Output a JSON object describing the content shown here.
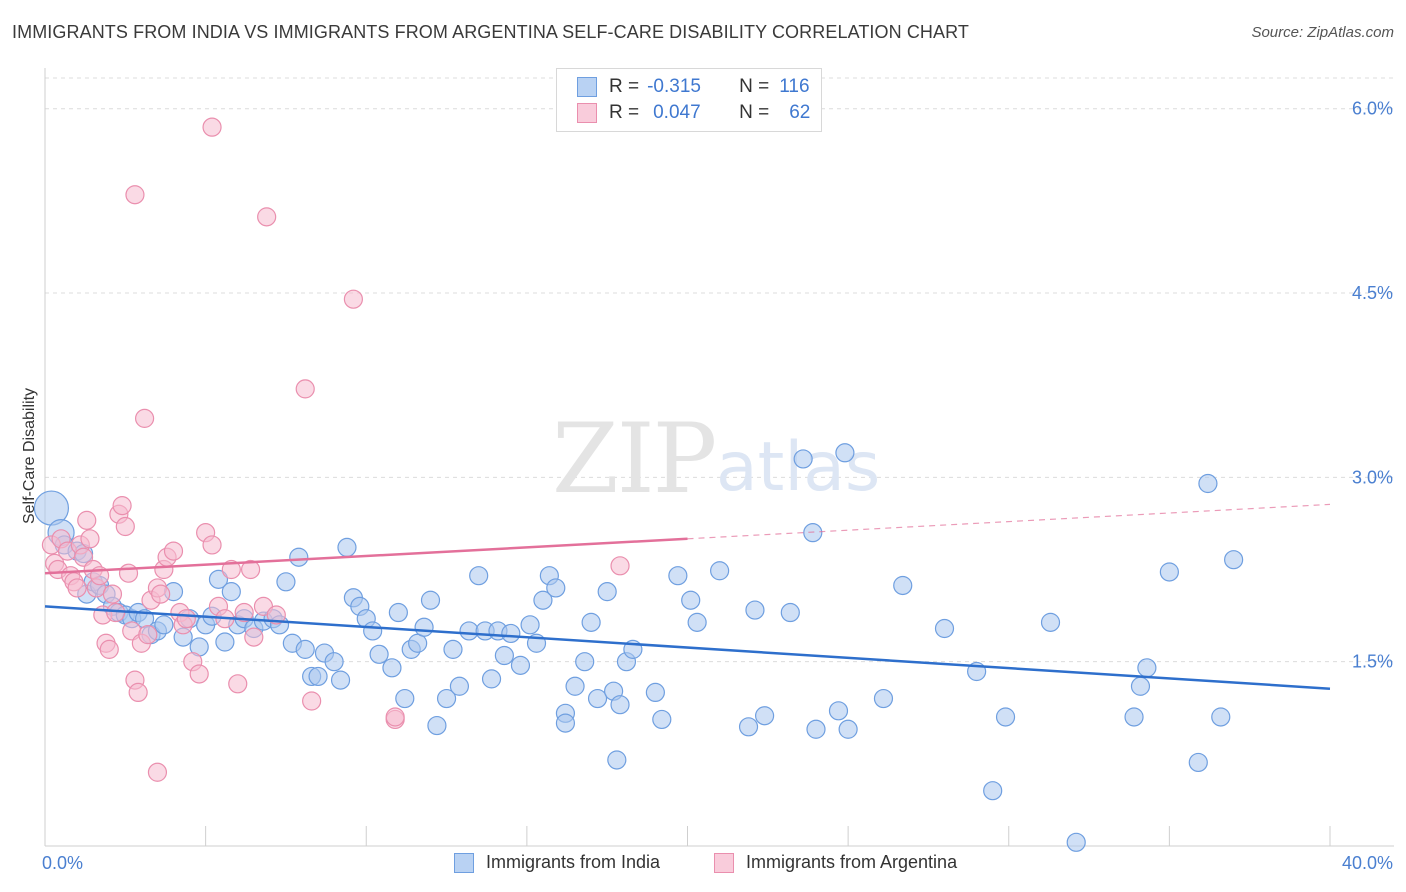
{
  "title": "IMMIGRANTS FROM INDIA VS IMMIGRANTS FROM ARGENTINA SELF-CARE DISABILITY CORRELATION CHART",
  "source": "Source: ZipAtlas.com",
  "watermark": {
    "part1": "ZIP",
    "part2": "atlas"
  },
  "colors": {
    "india_fill": "#a9c6ef",
    "india_stroke": "#6f9fe0",
    "india_line": "#2e6fcc",
    "argentina_fill": "#f6bcd0",
    "argentina_stroke": "#ea8fae",
    "argentina_line": "#e3709a",
    "axis_label": "#4a7fd0",
    "grid": "#dcdcdc"
  },
  "stats": [
    {
      "r_label": "R =",
      "r_value": "-0.315",
      "n_label": "N =",
      "n_value": "116"
    },
    {
      "r_label": "R =",
      "r_value": "0.047",
      "n_label": "N =",
      "n_value": "62"
    }
  ],
  "legend": [
    "Immigrants from India",
    "Immigrants from Argentina"
  ],
  "chart_data": {
    "type": "scatter",
    "title": "IMMIGRANTS FROM INDIA VS IMMIGRANTS FROM ARGENTINA SELF-CARE DISABILITY CORRELATION CHART",
    "xlabel": "",
    "ylabel": "Self-Care Disability",
    "xlim": [
      0,
      40
    ],
    "ylim": [
      0,
      6.25
    ],
    "x_tick_labels": [
      {
        "value": 0,
        "label": "0.0%"
      },
      {
        "value": 40,
        "label": "40.0%"
      }
    ],
    "y_ticks": [
      1.5,
      3.0,
      4.5,
      6.0
    ],
    "y_tick_labels": [
      "1.5%",
      "3.0%",
      "4.5%",
      "6.0%"
    ],
    "grid": true,
    "legend_position": "bottom-center",
    "series": [
      {
        "name": "Immigrants from India",
        "r": -0.315,
        "n": 116,
        "trend": {
          "x0": 0,
          "y0": 1.95,
          "x1": 40,
          "y1": 1.28
        },
        "points": [
          [
            0.2,
            2.75
          ],
          [
            0.5,
            2.55
          ],
          [
            0.6,
            2.45
          ],
          [
            1.0,
            2.4
          ],
          [
            1.2,
            2.38
          ],
          [
            1.3,
            2.05
          ],
          [
            1.5,
            2.15
          ],
          [
            1.7,
            2.12
          ],
          [
            1.9,
            2.05
          ],
          [
            2.1,
            1.95
          ],
          [
            2.3,
            1.9
          ],
          [
            2.5,
            1.88
          ],
          [
            2.7,
            1.85
          ],
          [
            2.9,
            1.9
          ],
          [
            3.1,
            1.85
          ],
          [
            3.3,
            1.72
          ],
          [
            3.5,
            1.75
          ],
          [
            3.7,
            1.8
          ],
          [
            4.0,
            2.07
          ],
          [
            4.3,
            1.7
          ],
          [
            4.5,
            1.85
          ],
          [
            4.8,
            1.62
          ],
          [
            5.0,
            1.8
          ],
          [
            5.2,
            1.87
          ],
          [
            5.4,
            2.17
          ],
          [
            5.6,
            1.66
          ],
          [
            5.8,
            2.07
          ],
          [
            6.0,
            1.8
          ],
          [
            6.2,
            1.85
          ],
          [
            6.5,
            1.77
          ],
          [
            6.8,
            1.83
          ],
          [
            7.1,
            1.85
          ],
          [
            7.3,
            1.8
          ],
          [
            7.5,
            2.15
          ],
          [
            7.7,
            1.65
          ],
          [
            7.9,
            2.35
          ],
          [
            8.1,
            1.6
          ],
          [
            8.3,
            1.38
          ],
          [
            8.5,
            1.38
          ],
          [
            8.7,
            1.57
          ],
          [
            9.0,
            1.5
          ],
          [
            9.2,
            1.35
          ],
          [
            9.4,
            2.43
          ],
          [
            9.6,
            2.02
          ],
          [
            9.8,
            1.95
          ],
          [
            10.0,
            1.85
          ],
          [
            10.2,
            1.75
          ],
          [
            10.4,
            1.56
          ],
          [
            10.8,
            1.45
          ],
          [
            11.0,
            1.9
          ],
          [
            11.2,
            1.2
          ],
          [
            11.4,
            1.6
          ],
          [
            11.6,
            1.65
          ],
          [
            11.8,
            1.78
          ],
          [
            12.0,
            2.0
          ],
          [
            12.2,
            0.98
          ],
          [
            12.5,
            1.2
          ],
          [
            12.7,
            1.6
          ],
          [
            12.9,
            1.3
          ],
          [
            13.2,
            1.75
          ],
          [
            13.5,
            2.2
          ],
          [
            13.7,
            1.75
          ],
          [
            13.9,
            1.36
          ],
          [
            14.1,
            1.75
          ],
          [
            14.3,
            1.55
          ],
          [
            14.5,
            1.73
          ],
          [
            14.8,
            1.47
          ],
          [
            15.1,
            1.8
          ],
          [
            15.3,
            1.65
          ],
          [
            15.5,
            2.0
          ],
          [
            15.7,
            2.2
          ],
          [
            15.9,
            2.1
          ],
          [
            16.2,
            1.08
          ],
          [
            16.2,
            1.0
          ],
          [
            16.5,
            1.3
          ],
          [
            16.8,
            1.5
          ],
          [
            17.0,
            1.82
          ],
          [
            17.2,
            1.2
          ],
          [
            17.5,
            2.07
          ],
          [
            17.7,
            1.26
          ],
          [
            17.8,
            0.7
          ],
          [
            17.9,
            1.15
          ],
          [
            18.1,
            1.5
          ],
          [
            18.3,
            1.6
          ],
          [
            19.0,
            1.25
          ],
          [
            19.2,
            1.03
          ],
          [
            19.7,
            2.2
          ],
          [
            20.1,
            2.0
          ],
          [
            20.3,
            1.82
          ],
          [
            21.0,
            2.24
          ],
          [
            21.9,
            0.97
          ],
          [
            22.1,
            1.92
          ],
          [
            22.4,
            1.06
          ],
          [
            23.2,
            1.9
          ],
          [
            23.6,
            3.15
          ],
          [
            23.9,
            2.55
          ],
          [
            24.0,
            0.95
          ],
          [
            24.7,
            1.1
          ],
          [
            24.9,
            3.2
          ],
          [
            25.0,
            0.95
          ],
          [
            26.1,
            1.2
          ],
          [
            26.7,
            2.12
          ],
          [
            28.0,
            1.77
          ],
          [
            29.0,
            1.42
          ],
          [
            29.5,
            0.45
          ],
          [
            29.9,
            1.05
          ],
          [
            31.3,
            1.82
          ],
          [
            32.1,
            0.03
          ],
          [
            33.9,
            1.05
          ],
          [
            34.1,
            1.3
          ],
          [
            34.3,
            1.45
          ],
          [
            35.0,
            2.23
          ],
          [
            35.9,
            0.68
          ],
          [
            36.2,
            2.95
          ],
          [
            36.6,
            1.05
          ],
          [
            37.0,
            2.33
          ]
        ]
      },
      {
        "name": "Immigrants from Argentina",
        "r": 0.047,
        "n": 62,
        "trend": {
          "x0": 0,
          "y0": 2.22,
          "x1": 20,
          "y1": 2.5,
          "dashed_to_x": 40,
          "dashed_to_y": 2.78
        },
        "points": [
          [
            0.2,
            2.45
          ],
          [
            0.3,
            2.3
          ],
          [
            0.4,
            2.25
          ],
          [
            0.5,
            2.5
          ],
          [
            0.7,
            2.4
          ],
          [
            0.8,
            2.2
          ],
          [
            0.9,
            2.15
          ],
          [
            1.0,
            2.1
          ],
          [
            1.1,
            2.45
          ],
          [
            1.2,
            2.35
          ],
          [
            1.3,
            2.65
          ],
          [
            1.4,
            2.5
          ],
          [
            1.5,
            2.25
          ],
          [
            1.6,
            2.1
          ],
          [
            1.7,
            2.2
          ],
          [
            1.8,
            1.88
          ],
          [
            1.9,
            1.65
          ],
          [
            2.0,
            1.6
          ],
          [
            2.1,
            2.05
          ],
          [
            2.2,
            1.9
          ],
          [
            2.3,
            2.7
          ],
          [
            2.4,
            2.77
          ],
          [
            2.5,
            2.6
          ],
          [
            2.6,
            2.22
          ],
          [
            2.7,
            1.75
          ],
          [
            2.8,
            1.35
          ],
          [
            2.9,
            1.25
          ],
          [
            3.0,
            1.65
          ],
          [
            3.2,
            1.72
          ],
          [
            3.3,
            2.0
          ],
          [
            3.5,
            2.1
          ],
          [
            3.6,
            2.05
          ],
          [
            3.7,
            2.25
          ],
          [
            3.8,
            2.35
          ],
          [
            4.0,
            2.4
          ],
          [
            4.2,
            1.9
          ],
          [
            4.3,
            1.8
          ],
          [
            4.4,
            1.85
          ],
          [
            4.6,
            1.5
          ],
          [
            4.8,
            1.4
          ],
          [
            5.0,
            2.55
          ],
          [
            5.2,
            2.45
          ],
          [
            5.4,
            1.95
          ],
          [
            5.6,
            1.85
          ],
          [
            5.8,
            2.25
          ],
          [
            6.0,
            1.32
          ],
          [
            6.2,
            1.9
          ],
          [
            6.5,
            1.7
          ],
          [
            6.8,
            1.95
          ],
          [
            7.2,
            1.88
          ],
          [
            3.5,
            0.6
          ],
          [
            3.1,
            3.48
          ],
          [
            2.8,
            5.3
          ],
          [
            5.2,
            5.85
          ],
          [
            6.9,
            5.12
          ],
          [
            9.6,
            4.45
          ],
          [
            8.1,
            3.72
          ],
          [
            8.3,
            1.18
          ],
          [
            10.9,
            1.03
          ],
          [
            10.9,
            1.05
          ],
          [
            17.9,
            2.28
          ],
          [
            6.4,
            2.25
          ]
        ]
      }
    ]
  }
}
